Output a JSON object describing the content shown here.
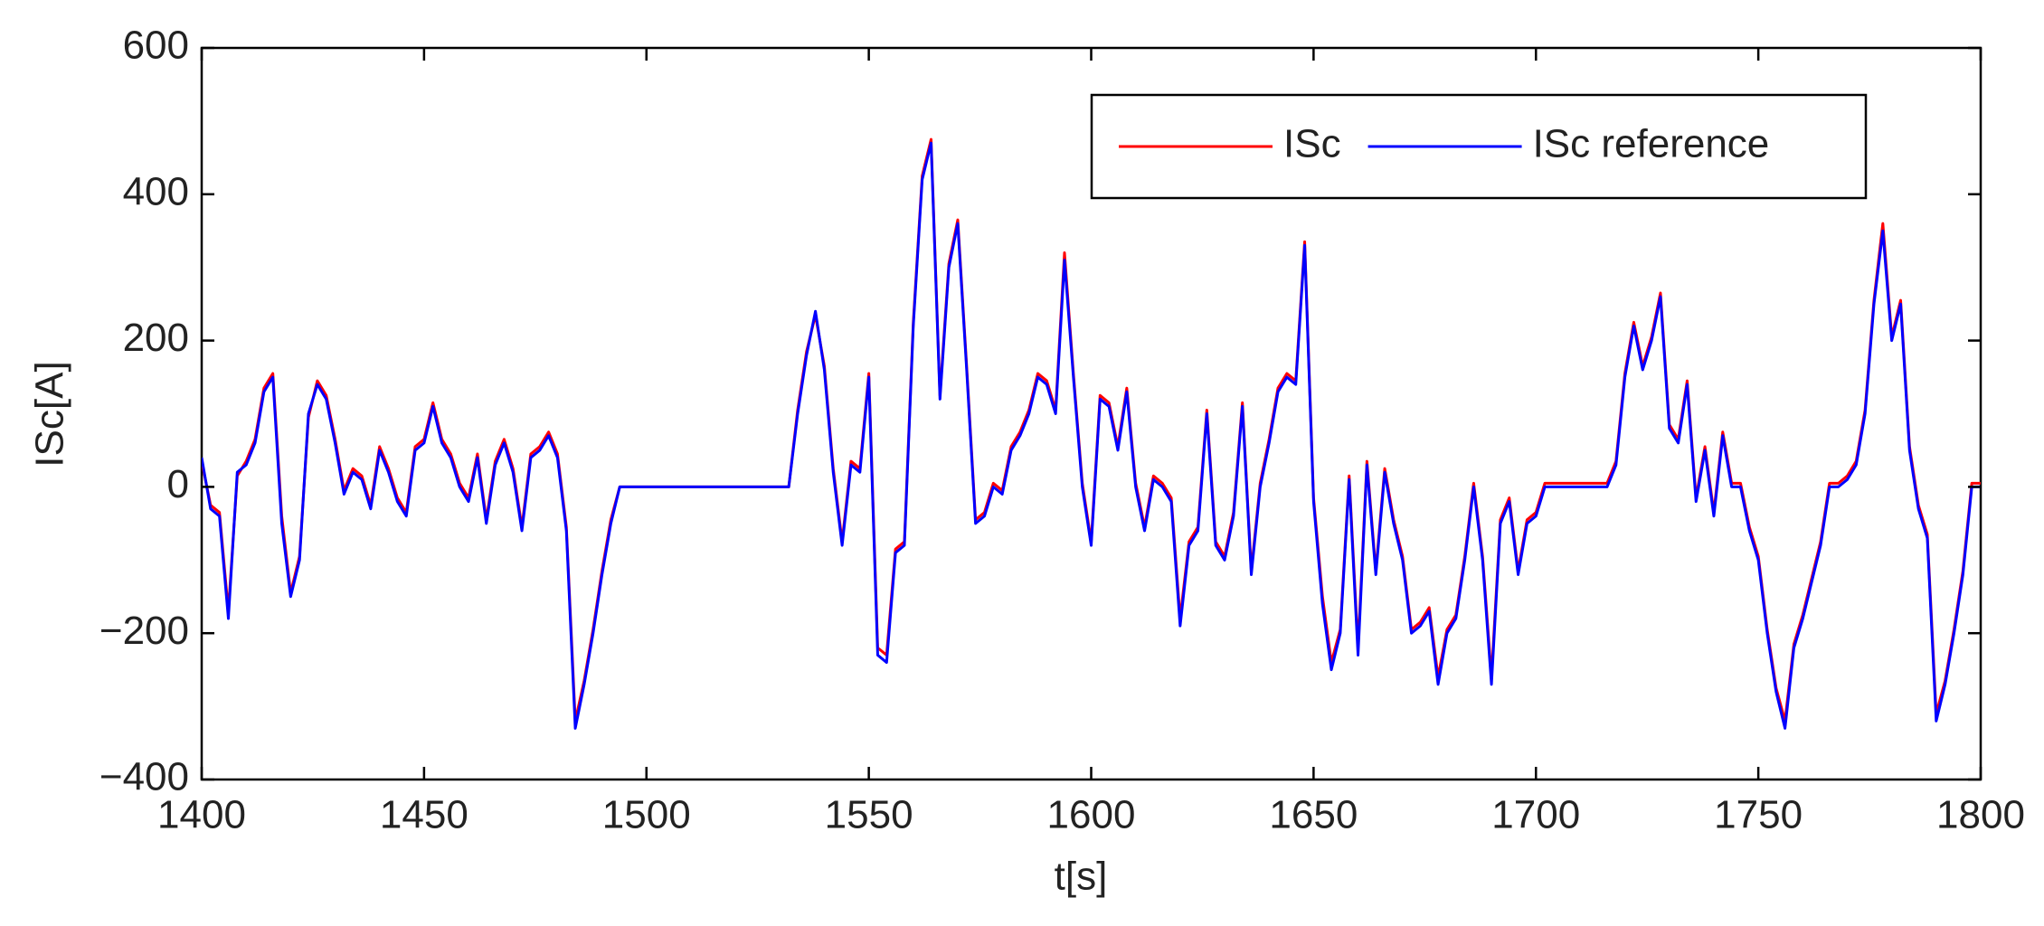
{
  "chart_data": {
    "type": "line",
    "xlabel": "t[s]",
    "ylabel": "ISc[A]",
    "xlim": [
      1400,
      1800
    ],
    "xticks": [
      1400,
      1450,
      1500,
      1550,
      1600,
      1650,
      1700,
      1750,
      1800
    ],
    "ylim": [
      -400,
      600
    ],
    "yticks": [
      {
        "value": -400,
        "label": "−400"
      },
      {
        "value": -200,
        "label": "−200"
      },
      0,
      200,
      400,
      600
    ],
    "legend": "upper right",
    "grid": false,
    "x": [
      1400,
      1402,
      1404,
      1406,
      1408,
      1410,
      1412,
      1414,
      1416,
      1418,
      1420,
      1422,
      1424,
      1426,
      1428,
      1430,
      1432,
      1434,
      1436,
      1438,
      1440,
      1442,
      1444,
      1446,
      1448,
      1450,
      1452,
      1454,
      1456,
      1458,
      1460,
      1462,
      1464,
      1466,
      1468,
      1470,
      1472,
      1474,
      1476,
      1478,
      1480,
      1482,
      1484,
      1486,
      1488,
      1490,
      1492,
      1494,
      1496,
      1498,
      1500,
      1502,
      1504,
      1506,
      1508,
      1510,
      1512,
      1514,
      1516,
      1518,
      1520,
      1522,
      1524,
      1526,
      1528,
      1530,
      1532,
      1534,
      1536,
      1538,
      1540,
      1542,
      1544,
      1546,
      1548,
      1550,
      1552,
      1554,
      1556,
      1558,
      1560,
      1562,
      1564,
      1566,
      1568,
      1570,
      1572,
      1574,
      1576,
      1578,
      1580,
      1582,
      1584,
      1586,
      1588,
      1590,
      1592,
      1594,
      1596,
      1598,
      1600,
      1602,
      1604,
      1606,
      1608,
      1610,
      1612,
      1614,
      1616,
      1618,
      1620,
      1622,
      1624,
      1626,
      1628,
      1630,
      1632,
      1634,
      1636,
      1638,
      1640,
      1642,
      1644,
      1646,
      1648,
      1650,
      1652,
      1654,
      1656,
      1658,
      1660,
      1662,
      1664,
      1666,
      1668,
      1670,
      1672,
      1674,
      1676,
      1678,
      1680,
      1682,
      1684,
      1686,
      1688,
      1690,
      1692,
      1694,
      1696,
      1698,
      1700,
      1702,
      1704,
      1706,
      1708,
      1710,
      1712,
      1714,
      1716,
      1718,
      1720,
      1722,
      1724,
      1726,
      1728,
      1730,
      1732,
      1734,
      1736,
      1738,
      1740,
      1742,
      1744,
      1746,
      1748,
      1750,
      1752,
      1754,
      1756,
      1758,
      1760,
      1762,
      1764,
      1766,
      1768,
      1770,
      1772,
      1774,
      1776,
      1778,
      1780,
      1782,
      1784,
      1786,
      1788,
      1790,
      1792,
      1794,
      1796,
      1798,
      1800
    ],
    "series": [
      {
        "name": "ISc",
        "color": "#ff0000",
        "values": [
          35,
          -25,
          -35,
          -170,
          15,
          35,
          65,
          135,
          155,
          -40,
          -145,
          -95,
          95,
          145,
          125,
          65,
          -5,
          25,
          15,
          -25,
          55,
          25,
          -15,
          -35,
          55,
          65,
          115,
          65,
          45,
          5,
          -15,
          45,
          -45,
          35,
          65,
          25,
          -55,
          45,
          55,
          75,
          45,
          -55,
          -320,
          -265,
          -195,
          -115,
          -45,
          0,
          0,
          0,
          0,
          0,
          0,
          0,
          0,
          0,
          0,
          0,
          0,
          0,
          0,
          0,
          0,
          0,
          0,
          0,
          0,
          105,
          185,
          235,
          165,
          25,
          -75,
          35,
          25,
          155,
          -220,
          -230,
          -85,
          -75,
          225,
          425,
          475,
          125,
          305,
          365,
          165,
          -45,
          -35,
          5,
          -5,
          55,
          75,
          105,
          155,
          145,
          105,
          320,
          155,
          5,
          -75,
          125,
          115,
          55,
          135,
          5,
          -55,
          15,
          5,
          -15,
          -180,
          -75,
          -55,
          105,
          -75,
          -95,
          -35,
          115,
          -115,
          5,
          65,
          135,
          155,
          145,
          335,
          -15,
          -150,
          -240,
          -195,
          15,
          -220,
          35,
          -115,
          25,
          -45,
          -95,
          -195,
          -185,
          -165,
          -260,
          -195,
          -175,
          -95,
          5,
          -95,
          -260,
          -45,
          -15,
          -115,
          -45,
          -35,
          5,
          5,
          5,
          5,
          5,
          5,
          5,
          5,
          35,
          155,
          225,
          165,
          205,
          265,
          85,
          65,
          145,
          -15,
          55,
          -35,
          75,
          5,
          5,
          -55,
          -95,
          -195,
          -275,
          -320,
          -215,
          -175,
          -125,
          -75,
          5,
          5,
          15,
          35,
          105,
          255,
          360,
          205,
          255,
          55,
          -25,
          -65,
          -310,
          -265,
          -195,
          -115,
          5,
          5
        ]
      },
      {
        "name": "ISc reference",
        "color": "#0000ff",
        "values": [
          40,
          -30,
          -40,
          -180,
          20,
          30,
          60,
          130,
          150,
          -50,
          -150,
          -100,
          100,
          140,
          120,
          60,
          -10,
          20,
          10,
          -30,
          50,
          20,
          -20,
          -40,
          50,
          60,
          110,
          60,
          40,
          0,
          -20,
          40,
          -50,
          30,
          60,
          20,
          -60,
          40,
          50,
          70,
          40,
          -60,
          -330,
          -270,
          -200,
          -120,
          -50,
          0,
          0,
          0,
          0,
          0,
          0,
          0,
          0,
          0,
          0,
          0,
          0,
          0,
          0,
          0,
          0,
          0,
          0,
          0,
          0,
          100,
          180,
          240,
          160,
          20,
          -80,
          30,
          20,
          150,
          -230,
          -240,
          -90,
          -80,
          220,
          420,
          470,
          120,
          300,
          360,
          160,
          -50,
          -40,
          0,
          -10,
          50,
          70,
          100,
          150,
          140,
          100,
          310,
          150,
          0,
          -80,
          120,
          110,
          50,
          130,
          0,
          -60,
          10,
          0,
          -20,
          -190,
          -80,
          -60,
          100,
          -80,
          -100,
          -40,
          110,
          -120,
          0,
          60,
          130,
          150,
          140,
          330,
          -20,
          -160,
          -250,
          -200,
          10,
          -230,
          30,
          -120,
          20,
          -50,
          -100,
          -200,
          -190,
          -170,
          -270,
          -200,
          -180,
          -100,
          0,
          -100,
          -270,
          -50,
          -20,
          -120,
          -50,
          -40,
          0,
          0,
          0,
          0,
          0,
          0,
          0,
          0,
          30,
          150,
          220,
          160,
          200,
          260,
          80,
          60,
          140,
          -20,
          50,
          -40,
          70,
          0,
          0,
          -60,
          -100,
          -200,
          -280,
          -330,
          -220,
          -180,
          -130,
          -80,
          0,
          0,
          10,
          30,
          100,
          250,
          350,
          200,
          250,
          50,
          -30,
          -70,
          -320,
          -270,
          -200,
          -120,
          0,
          0
        ]
      }
    ]
  }
}
